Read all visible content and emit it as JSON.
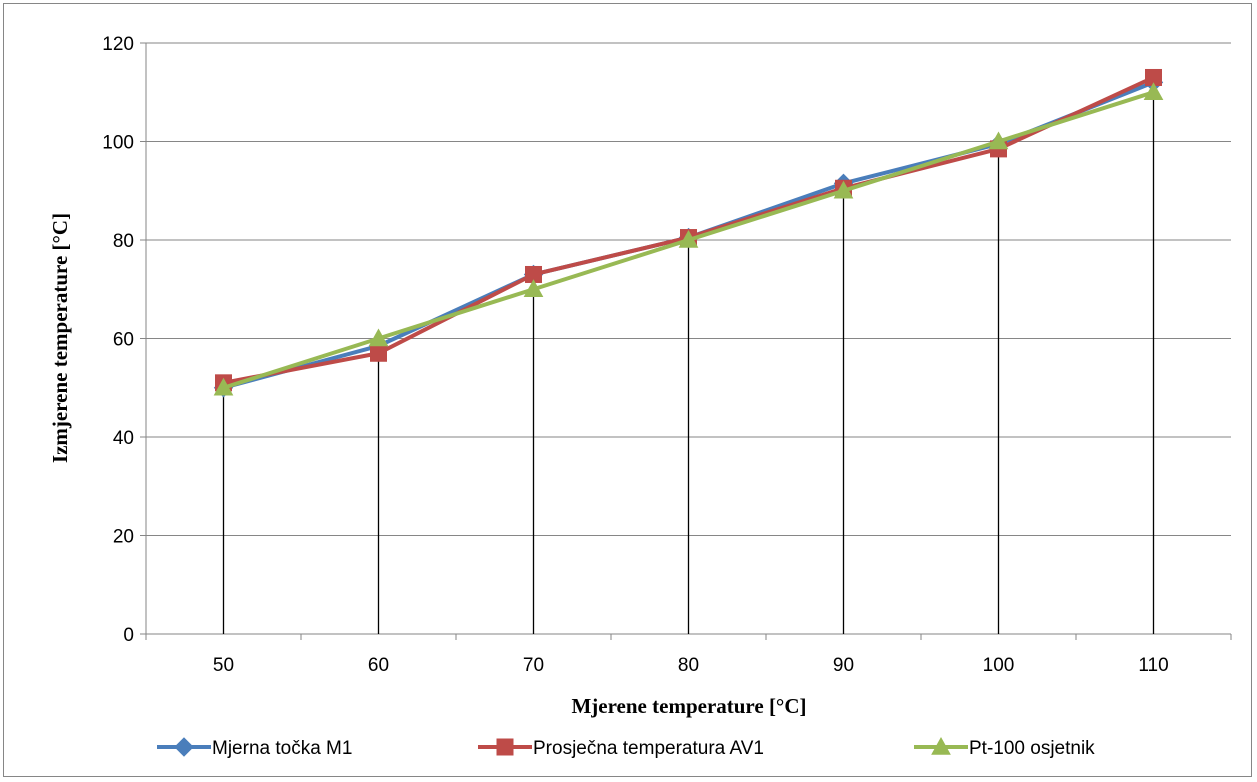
{
  "chart_data": {
    "type": "line",
    "title": "",
    "xlabel": "Mjerene temperature [°C]",
    "ylabel": "Izmjerene temperature [°C]",
    "categories": [
      "50",
      "60",
      "70",
      "80",
      "90",
      "100",
      "110"
    ],
    "ylim": [
      0,
      120
    ],
    "yticks": [
      "0",
      "20",
      "40",
      "60",
      "80",
      "100",
      "120"
    ],
    "grid": "horizontal",
    "drop_lines": true,
    "legend_position": "bottom",
    "series": [
      {
        "name": "Mjerna točka M1",
        "values": [
          50,
          58.5,
          73,
          80.5,
          91.5,
          99.5,
          112
        ],
        "color": "#4a7ebb",
        "marker": "diamond"
      },
      {
        "name": "Prosječna temperatura AV1",
        "values": [
          51,
          57,
          73,
          80.5,
          90.5,
          98.5,
          113
        ],
        "color": "#be4b48",
        "marker": "square"
      },
      {
        "name": "Pt-100 osjetnik",
        "values": [
          50,
          60,
          70,
          80,
          90,
          100,
          110
        ],
        "color": "#98b954",
        "marker": "triangle"
      }
    ]
  }
}
